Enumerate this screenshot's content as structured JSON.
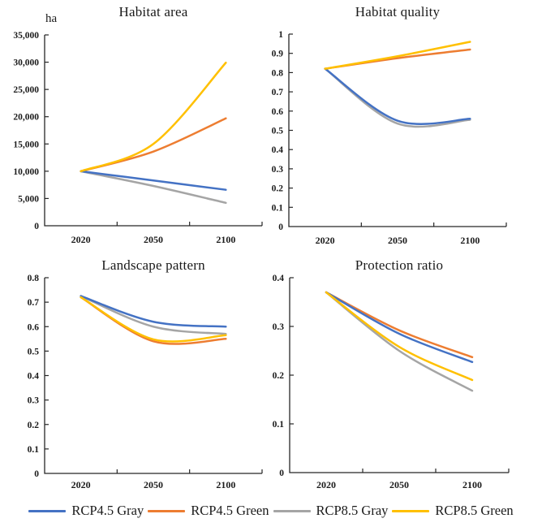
{
  "colors": {
    "background": "#ffffff",
    "axis": "#262626",
    "text": "#1a1a1a",
    "series_blue": "#4472C4",
    "series_orange": "#ED7D31",
    "series_gray": "#A5A5A5",
    "series_yellow": "#FFC000"
  },
  "legend": {
    "items": [
      {
        "label": "RCP4.5 Gray",
        "color": "series_blue"
      },
      {
        "label": "RCP4.5 Green",
        "color": "series_orange"
      },
      {
        "label": "RCP8.5 Gray",
        "color": "series_gray"
      },
      {
        "label": "RCP8.5 Green",
        "color": "series_yellow"
      }
    ]
  },
  "chart_data": [
    {
      "id": "habitat-area",
      "type": "line",
      "title": "Habitat area",
      "unit_label": "ha",
      "categories": [
        "2020",
        "2050",
        "2100"
      ],
      "ylim": [
        0,
        35000
      ],
      "ytick_labels": [
        "0",
        "5,000",
        "10,000",
        "15,000",
        "20,000",
        "25,000",
        "30,000",
        "35,000"
      ],
      "grid": false,
      "smooth": true,
      "legend_position": "bottom-shared",
      "series": [
        {
          "name": "RCP4.5 Gray",
          "color": "series_blue",
          "values": [
            10000,
            8300,
            6600
          ]
        },
        {
          "name": "RCP4.5 Green",
          "color": "series_orange",
          "values": [
            10000,
            13600,
            19700
          ]
        },
        {
          "name": "RCP8.5 Gray",
          "color": "series_gray",
          "values": [
            10000,
            7300,
            4200
          ]
        },
        {
          "name": "RCP8.5 Green",
          "color": "series_yellow",
          "values": [
            10000,
            15000,
            29900
          ]
        }
      ],
      "z_order": [
        2,
        1,
        0,
        3
      ]
    },
    {
      "id": "habitat-quality",
      "type": "line",
      "title": "Habitat quality",
      "categories": [
        "2020",
        "2050",
        "2100"
      ],
      "ylim": [
        0,
        1
      ],
      "ytick_labels": [
        "0",
        "0.1",
        "0.2",
        "0.3",
        "0.4",
        "0.5",
        "0.6",
        "0.7",
        "0.8",
        "0.9",
        "1"
      ],
      "grid": false,
      "smooth": true,
      "legend_position": "bottom-shared",
      "series": [
        {
          "name": "RCP4.5 Gray",
          "color": "series_blue",
          "values": [
            0.82,
            0.55,
            0.56
          ]
        },
        {
          "name": "RCP4.5 Green",
          "color": "series_orange",
          "values": [
            0.82,
            0.875,
            0.92
          ]
        },
        {
          "name": "RCP8.5 Gray",
          "color": "series_gray",
          "values": [
            0.82,
            0.535,
            0.555
          ]
        },
        {
          "name": "RCP8.5 Green",
          "color": "series_yellow",
          "values": [
            0.82,
            0.885,
            0.96
          ]
        }
      ],
      "z_order": [
        2,
        1,
        0,
        3
      ]
    },
    {
      "id": "landscape-pattern",
      "type": "line",
      "title": "Landscape pattern",
      "categories": [
        "2020",
        "2050",
        "2100"
      ],
      "ylim": [
        0,
        0.8
      ],
      "ytick_labels": [
        "0",
        "0.1",
        "0.2",
        "0.3",
        "0.4",
        "0.5",
        "0.6",
        "0.7",
        "0.8"
      ],
      "grid": false,
      "smooth": true,
      "legend_position": "bottom-shared",
      "series": [
        {
          "name": "RCP4.5 Gray",
          "color": "series_blue",
          "values": [
            0.725,
            0.62,
            0.6
          ]
        },
        {
          "name": "RCP4.5 Green",
          "color": "series_orange",
          "values": [
            0.72,
            0.54,
            0.55
          ]
        },
        {
          "name": "RCP8.5 Gray",
          "color": "series_gray",
          "values": [
            0.725,
            0.6,
            0.57
          ]
        },
        {
          "name": "RCP8.5 Green",
          "color": "series_yellow",
          "values": [
            0.72,
            0.548,
            0.565
          ]
        }
      ],
      "z_order": [
        2,
        1,
        0,
        3
      ]
    },
    {
      "id": "protection-ratio",
      "type": "line",
      "title": "Protection ratio",
      "categories": [
        "2020",
        "2050",
        "2100"
      ],
      "ylim": [
        0,
        0.4
      ],
      "ytick_labels": [
        "0",
        "0.1",
        "0.2",
        "0.3",
        "0.4"
      ],
      "grid": false,
      "smooth": true,
      "legend_position": "bottom-shared",
      "series": [
        {
          "name": "RCP4.5 Gray",
          "color": "series_blue",
          "values": [
            0.37,
            0.285,
            0.227
          ]
        },
        {
          "name": "RCP4.5 Green",
          "color": "series_orange",
          "values": [
            0.37,
            0.292,
            0.237
          ]
        },
        {
          "name": "RCP8.5 Gray",
          "color": "series_gray",
          "values": [
            0.37,
            0.25,
            0.168
          ]
        },
        {
          "name": "RCP8.5 Green",
          "color": "series_yellow",
          "values": [
            0.37,
            0.258,
            0.19
          ]
        }
      ],
      "z_order": [
        2,
        1,
        0,
        3
      ]
    }
  ]
}
